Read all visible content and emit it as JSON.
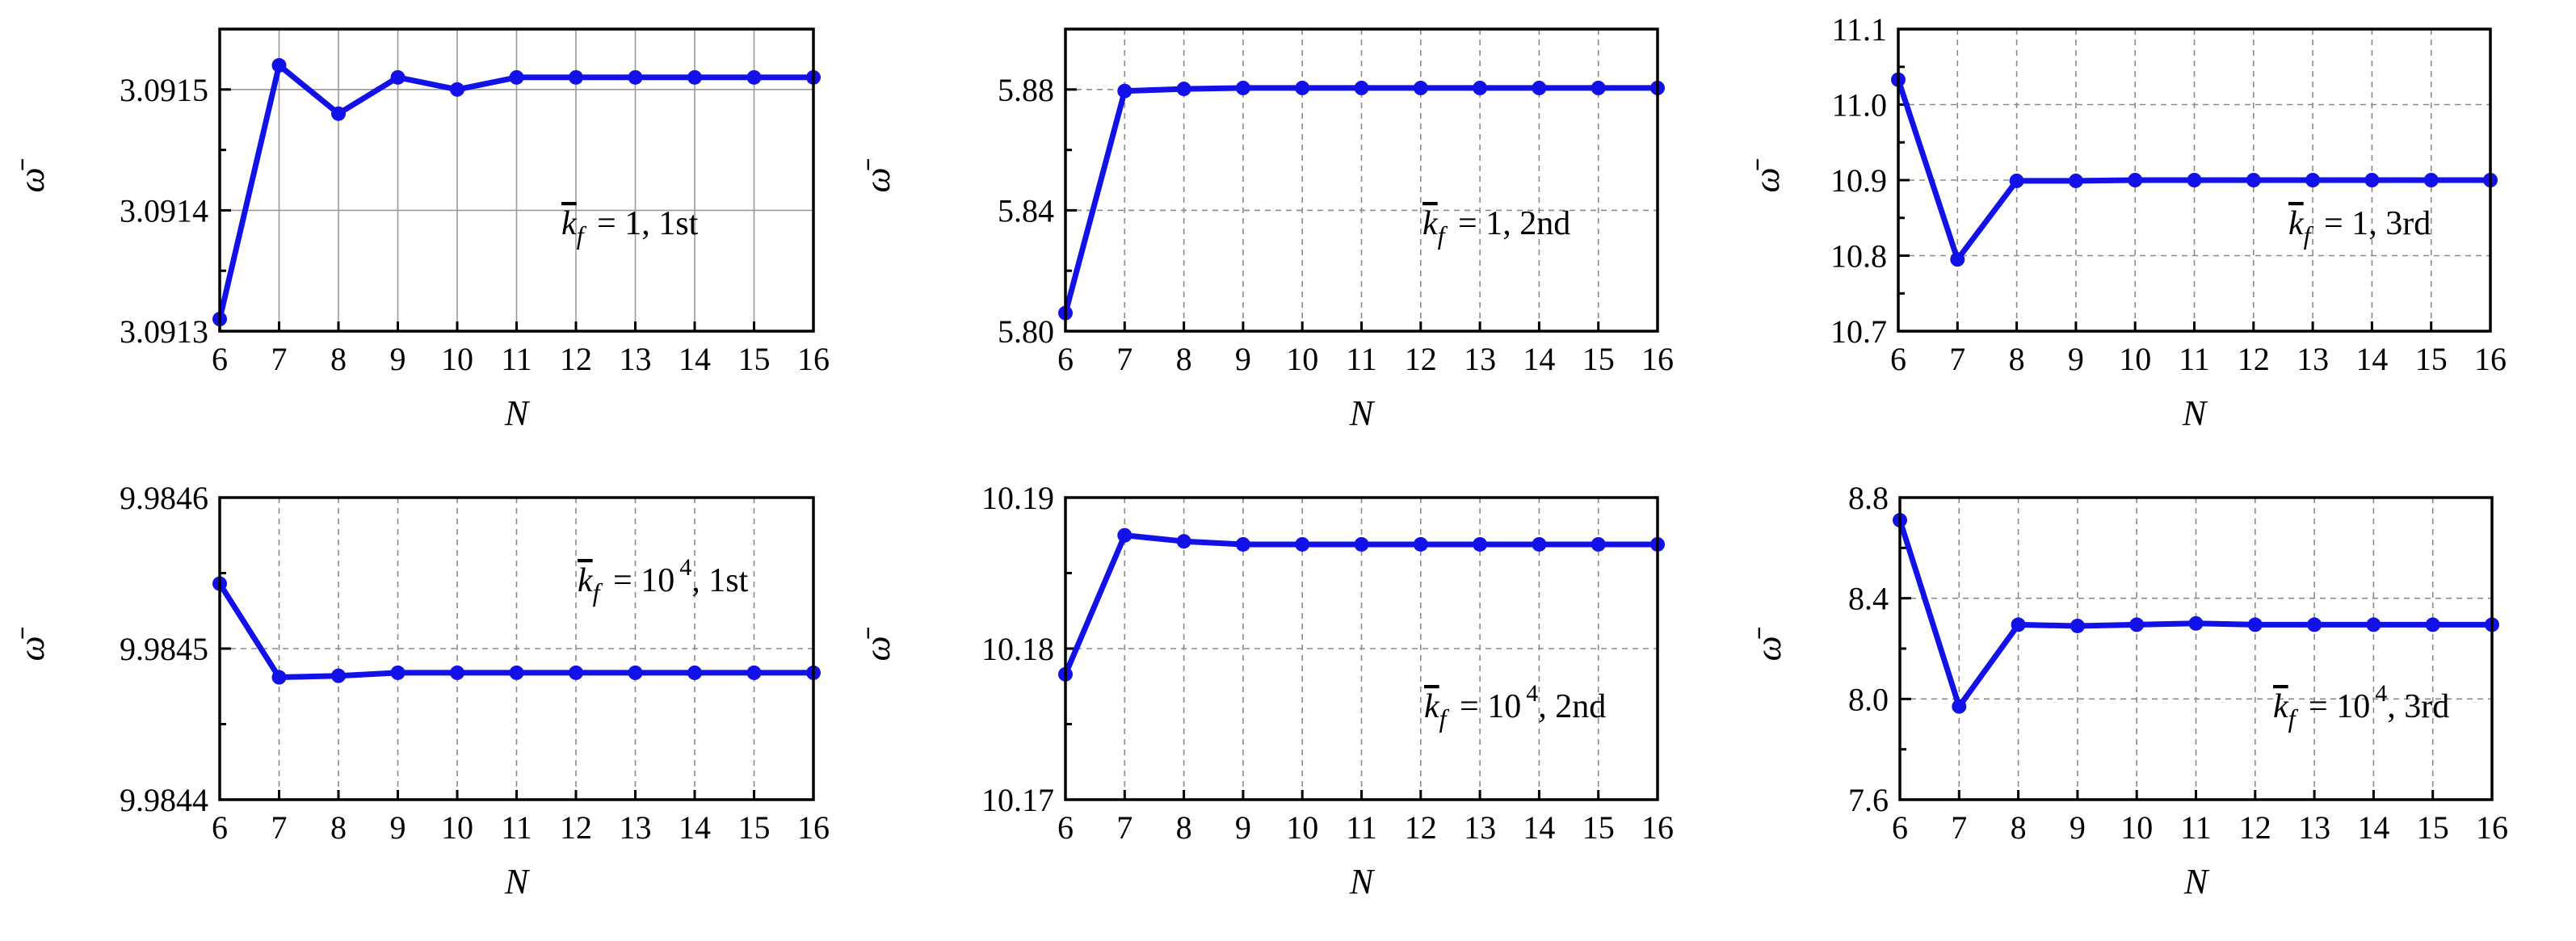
{
  "chart_data": [
    {
      "type": "line",
      "xlabel": "N",
      "ylabel": "ω̄",
      "x": [
        6,
        7,
        8,
        9,
        10,
        11,
        12,
        13,
        14,
        15,
        16
      ],
      "xlim": [
        6,
        16
      ],
      "ylim": [
        3.0913,
        3.09155
      ],
      "yticks": [
        3.0913,
        3.0914,
        3.0915
      ],
      "ytick_labels": [
        "3.0913",
        "3.0914",
        "3.0915"
      ],
      "grid": "solid",
      "series": [
        {
          "values": [
            3.09131,
            3.09152,
            3.09148,
            3.09151,
            3.0915,
            3.09151,
            3.09151,
            3.09151,
            3.09151,
            3.09151,
            3.09151
          ],
          "color": "#1212e8"
        }
      ],
      "annotation": {
        "k_symbol": "k",
        "k_sub": "f",
        "eq": "=",
        "k_value": "1",
        "k_exp": "",
        "mode": ", 1st"
      }
    },
    {
      "type": "line",
      "xlabel": "N",
      "ylabel": "ω̄",
      "x": [
        6,
        7,
        8,
        9,
        10,
        11,
        12,
        13,
        14,
        15,
        16
      ],
      "xlim": [
        6,
        16
      ],
      "ylim": [
        5.8,
        5.9
      ],
      "yticks": [
        5.8,
        5.84,
        5.88
      ],
      "ytick_labels": [
        "5.80",
        "5.84",
        "5.88"
      ],
      "grid": "dashed",
      "series": [
        {
          "values": [
            5.806,
            5.8795,
            5.8802,
            5.8805,
            5.8805,
            5.8805,
            5.8805,
            5.8805,
            5.8805,
            5.8805,
            5.8805
          ],
          "color": "#1212e8"
        }
      ],
      "annotation": {
        "k_symbol": "k",
        "k_sub": "f",
        "eq": "=",
        "k_value": "1",
        "k_exp": "",
        "mode": ", 2nd"
      }
    },
    {
      "type": "line",
      "xlabel": "N",
      "ylabel": "ω̄",
      "x": [
        6,
        7,
        8,
        9,
        10,
        11,
        12,
        13,
        14,
        15,
        16
      ],
      "xlim": [
        6,
        16
      ],
      "ylim": [
        10.7,
        11.1
      ],
      "yticks": [
        10.7,
        10.8,
        10.9,
        11.0,
        11.1
      ],
      "ytick_labels": [
        "10.7",
        "10.8",
        "10.9",
        "11.0",
        "11.1"
      ],
      "grid": "dashed",
      "series": [
        {
          "values": [
            11.033,
            10.795,
            10.899,
            10.899,
            10.9,
            10.9,
            10.9,
            10.9,
            10.9,
            10.9,
            10.9
          ],
          "color": "#1212e8"
        }
      ],
      "annotation": {
        "k_symbol": "k",
        "k_sub": "f",
        "eq": "=",
        "k_value": "1",
        "k_exp": "",
        "mode": ", 3rd"
      }
    },
    {
      "type": "line",
      "xlabel": "N",
      "ylabel": "ω̄",
      "x": [
        6,
        7,
        8,
        9,
        10,
        11,
        12,
        13,
        14,
        15,
        16
      ],
      "xlim": [
        6,
        16
      ],
      "ylim": [
        9.9844,
        9.9846
      ],
      "yticks": [
        9.9844,
        9.9845,
        9.9846
      ],
      "ytick_labels": [
        "9.9844",
        "9.9845",
        "9.9846"
      ],
      "grid": "dashed",
      "series": [
        {
          "values": [
            9.984543,
            9.984481,
            9.984482,
            9.984484,
            9.984484,
            9.984484,
            9.984484,
            9.984484,
            9.984484,
            9.984484,
            9.984484
          ],
          "color": "#1212e8"
        }
      ],
      "annotation": {
        "k_symbol": "k",
        "k_sub": "f",
        "eq": "=",
        "k_value": "10",
        "k_exp": "4",
        "mode": ", 1st"
      }
    },
    {
      "type": "line",
      "xlabel": "N",
      "ylabel": "ω̄",
      "x": [
        6,
        7,
        8,
        9,
        10,
        11,
        12,
        13,
        14,
        15,
        16
      ],
      "xlim": [
        6,
        16
      ],
      "ylim": [
        10.17,
        10.19
      ],
      "yticks": [
        10.17,
        10.18,
        10.19
      ],
      "ytick_labels": [
        "10.17",
        "10.18",
        "10.19"
      ],
      "grid": "dashed",
      "series": [
        {
          "values": [
            10.1783,
            10.1875,
            10.1871,
            10.1869,
            10.1869,
            10.1869,
            10.1869,
            10.1869,
            10.1869,
            10.1869,
            10.1869
          ],
          "color": "#1212e8"
        }
      ],
      "annotation": {
        "k_symbol": "k",
        "k_sub": "f",
        "eq": "=",
        "k_value": "10",
        "k_exp": "4",
        "mode": ", 2nd"
      }
    },
    {
      "type": "line",
      "xlabel": "N",
      "ylabel": "ω̄",
      "x": [
        6,
        7,
        8,
        9,
        10,
        11,
        12,
        13,
        14,
        15,
        16
      ],
      "xlim": [
        6,
        16
      ],
      "ylim": [
        7.6,
        8.8
      ],
      "yticks": [
        7.6,
        8.0,
        8.4,
        8.8
      ],
      "ytick_labels": [
        "7.6",
        "8.0",
        "8.4",
        "8.8"
      ],
      "grid": "dashed",
      "series": [
        {
          "values": [
            8.71,
            7.97,
            8.295,
            8.29,
            8.295,
            8.3,
            8.295,
            8.295,
            8.295,
            8.295,
            8.295
          ],
          "color": "#1212e8"
        }
      ],
      "annotation": {
        "k_symbol": "k",
        "k_sub": "f",
        "eq": "=",
        "k_value": "10",
        "k_exp": "4",
        "mode": ", 3rd"
      }
    }
  ]
}
